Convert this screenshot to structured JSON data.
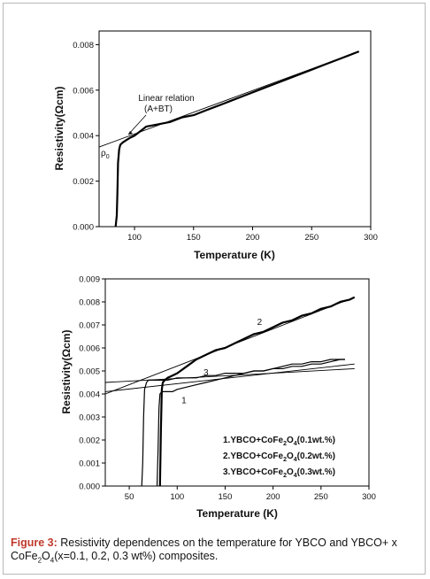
{
  "caption": {
    "label": "Figure 3:",
    "text_a": " Resistivity dependences on the temperature for YBCO and YBCO+ x CoFe",
    "sub_2": "2",
    "text_b": "O",
    "sub_4": "4",
    "text_c": "(x=0.1, 0.2, 0.3 wt%) composites."
  },
  "chart_data": [
    {
      "type": "line",
      "xlabel": "Temperature (K)",
      "ylabel": "Resistivity(Ωcm)",
      "xlim": [
        70,
        300
      ],
      "ylim": [
        0.0,
        0.0086
      ],
      "xticks": [
        100,
        150,
        200,
        250,
        300
      ],
      "yticks": [
        0.0,
        0.002,
        0.004,
        0.006,
        0.008
      ],
      "ytick_labels": [
        "0.000",
        "0.002",
        "0.004",
        "0.006",
        "0.008"
      ],
      "grid": false,
      "series": [
        {
          "x": [
            84,
            85,
            85.5,
            86,
            87,
            88,
            90,
            93,
            96,
            100,
            105,
            110,
            120,
            130,
            140,
            150,
            160,
            170,
            180,
            190,
            200,
            210,
            220,
            230,
            240,
            250,
            260,
            270,
            280,
            290
          ],
          "y": [
            0.0,
            0.0005,
            0.0015,
            0.0028,
            0.0034,
            0.0036,
            0.0037,
            0.0038,
            0.0039,
            0.004,
            0.0042,
            0.0044,
            0.0045,
            0.0046,
            0.0048,
            0.0049,
            0.0051,
            0.0053,
            0.0055,
            0.0057,
            0.0059,
            0.0061,
            0.0063,
            0.0065,
            0.0067,
            0.0069,
            0.0071,
            0.0073,
            0.0075,
            0.0077
          ]
        }
      ],
      "fit_line": {
        "x": [
          70,
          290
        ],
        "y": [
          0.0035,
          0.0077
        ]
      },
      "annotations": {
        "linear_1": "Linear relation",
        "linear_2": "(A+BT)",
        "rho": "ρ",
        "rho_sub": "0"
      }
    },
    {
      "type": "line",
      "xlabel": "Temperature (K)",
      "ylabel": "Resistivity(Ωcm)",
      "xlim": [
        25,
        300
      ],
      "ylim": [
        0.0,
        0.009
      ],
      "xticks": [
        50,
        100,
        150,
        200,
        250,
        300
      ],
      "yticks": [
        0.0,
        0.001,
        0.002,
        0.003,
        0.004,
        0.005,
        0.006,
        0.007,
        0.008,
        0.009
      ],
      "ytick_labels": [
        "0.000",
        "0.001",
        "0.002",
        "0.003",
        "0.004",
        "0.005",
        "0.006",
        "0.007",
        "0.008",
        "0.009"
      ],
      "grid": false,
      "legend": [
        {
          "n": "1.YBCO+CoFe",
          "s2": "2",
          "o": "O",
          "s4": "4",
          "wt": "(0.1wt.%)"
        },
        {
          "n": "2.YBCO+CoFe",
          "s2": "2",
          "o": "O",
          "s4": "4",
          "wt": "(0.2wt.%)"
        },
        {
          "n": "3.YBCO+CoFe",
          "s2": "2",
          "o": "O",
          "s4": "4",
          "wt": "(0.3wt.%)"
        }
      ],
      "series": [
        {
          "name": "1",
          "label": "1",
          "label_pos": [
            107,
            0.0036
          ],
          "x": [
            79,
            80,
            81,
            82,
            84,
            87,
            90,
            95,
            100,
            110,
            120,
            130,
            140,
            150,
            160,
            170,
            180,
            190,
            200,
            210,
            220,
            230,
            240,
            250,
            260,
            270,
            275
          ],
          "y": [
            0.0,
            0.0015,
            0.0034,
            0.004,
            0.0041,
            0.0041,
            0.0041,
            0.0041,
            0.0042,
            0.0043,
            0.0044,
            0.0045,
            0.0046,
            0.0047,
            0.0048,
            0.0049,
            0.005,
            0.005,
            0.0051,
            0.0052,
            0.0053,
            0.0053,
            0.0054,
            0.0054,
            0.0055,
            0.0055,
            0.0055
          ]
        },
        {
          "name": "2",
          "label": "2",
          "label_pos": [
            186,
            0.007
          ],
          "x": [
            82,
            83,
            84,
            85,
            87,
            90,
            95,
            100,
            110,
            120,
            130,
            140,
            150,
            160,
            170,
            180,
            190,
            200,
            210,
            220,
            230,
            240,
            250,
            260,
            270,
            280,
            285
          ],
          "y": [
            0.0,
            0.0025,
            0.0042,
            0.0045,
            0.0046,
            0.0047,
            0.0048,
            0.0049,
            0.0052,
            0.0055,
            0.0057,
            0.0059,
            0.006,
            0.0062,
            0.0064,
            0.0066,
            0.0067,
            0.0069,
            0.0071,
            0.0072,
            0.0074,
            0.0075,
            0.0077,
            0.0078,
            0.008,
            0.0081,
            0.0082
          ]
        },
        {
          "name": "3",
          "label": "3",
          "label_pos": [
            130,
            0.0048
          ],
          "x": [
            63,
            64,
            65,
            66,
            68,
            70,
            72,
            75,
            80,
            90,
            100,
            110,
            120,
            130,
            140,
            150,
            160,
            170,
            180,
            190,
            200,
            210,
            220,
            230,
            240,
            250,
            260,
            270,
            275
          ],
          "y": [
            0.0,
            0.001,
            0.003,
            0.0042,
            0.0045,
            0.0046,
            0.0046,
            0.0046,
            0.0046,
            0.0046,
            0.0047,
            0.0047,
            0.0047,
            0.0048,
            0.0048,
            0.0049,
            0.0049,
            0.0049,
            0.005,
            0.005,
            0.0051,
            0.0051,
            0.0052,
            0.0052,
            0.0053,
            0.0053,
            0.0054,
            0.0055,
            0.0055
          ]
        }
      ],
      "fit_lines": [
        {
          "x": [
            25,
            285
          ],
          "y": [
            0.004,
            0.0082
          ]
        },
        {
          "x": [
            25,
            285
          ],
          "y": [
            0.0041,
            0.0053
          ]
        },
        {
          "x": [
            25,
            285
          ],
          "y": [
            0.0045,
            0.0051
          ]
        }
      ]
    }
  ]
}
